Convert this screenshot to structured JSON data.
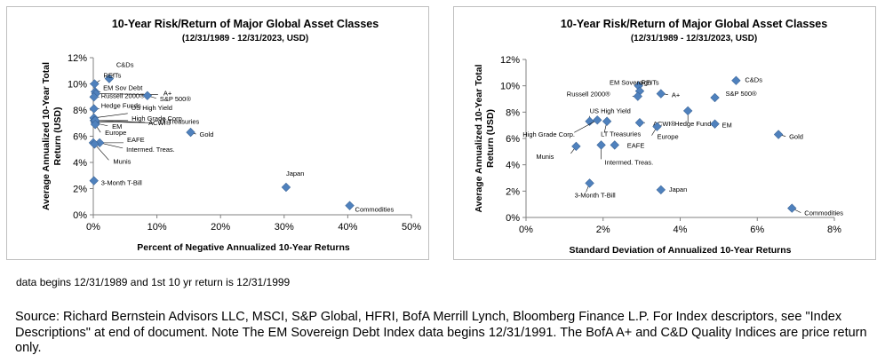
{
  "chart_data": [
    {
      "type": "scatter",
      "title": "10-Year Risk/Return of Major Global Asset Classes",
      "subtitle": "(12/31/1989 - 12/31/2023, USD)",
      "xlabel": "Percent of Negative Annualized 10-Year Returns",
      "ylabel": "Average Annualized 10-Year Total Return (USD)",
      "xlim": [
        0,
        50
      ],
      "ylim": [
        0,
        12
      ],
      "x_ticks": [
        "0%",
        "10%",
        "20%",
        "30%",
        "40%",
        "50%"
      ],
      "y_ticks": [
        "0%",
        "2%",
        "4%",
        "6%",
        "8%",
        "10%",
        "12%"
      ],
      "grid": false,
      "points": [
        {
          "label": "C&Ds",
          "x": 2.5,
          "y": 10.4
        },
        {
          "label": "REITs",
          "x": 0.2,
          "y": 10.0
        },
        {
          "label": "EM Sov Debt",
          "x": 0.3,
          "y": 9.4
        },
        {
          "label": "A+",
          "x": 0.4,
          "y": 9.25
        },
        {
          "label": "Russell 2000®",
          "x": 0.1,
          "y": 9.0
        },
        {
          "label": "S&P 500®",
          "x": 8.5,
          "y": 9.1
        },
        {
          "label": "Hedge Funds",
          "x": 0.1,
          "y": 8.1
        },
        {
          "label": "US High Yield",
          "x": 0.1,
          "y": 7.4
        },
        {
          "label": "High Grade Corp.",
          "x": 0.15,
          "y": 7.2
        },
        {
          "label": "LT Treasuries",
          "x": 0.3,
          "y": 7.1
        },
        {
          "label": "EM",
          "x": 0.3,
          "y": 7.0
        },
        {
          "label": "ACWI®",
          "x": 0.3,
          "y": 7.2
        },
        {
          "label": "Europe",
          "x": 0.3,
          "y": 6.9
        },
        {
          "label": "Gold",
          "x": 15.3,
          "y": 6.3
        },
        {
          "label": "EAFE",
          "x": 0.0,
          "y": 5.5
        },
        {
          "label": "Intermed. Treas.",
          "x": 1.0,
          "y": 5.5
        },
        {
          "label": "Munis",
          "x": 0.2,
          "y": 5.4
        },
        {
          "label": "3-Month T-Bill",
          "x": 0.1,
          "y": 2.6
        },
        {
          "label": "Japan",
          "x": 30.3,
          "y": 2.1
        },
        {
          "label": "Commodities",
          "x": 40.3,
          "y": 0.7
        }
      ]
    },
    {
      "type": "scatter",
      "title": "10-Year Risk/Return of Major Global Asset Classes",
      "subtitle": "(12/31/1989 - 12/31/2023, USD)",
      "xlabel": "Standard Deviation of Annualized 10-Year Returns",
      "ylabel": "Average Annualized 10-Year Total Return (USD)",
      "xlim": [
        0,
        8
      ],
      "ylim": [
        0,
        12
      ],
      "x_ticks": [
        "0%",
        "2%",
        "4%",
        "6%",
        "8%"
      ],
      "y_ticks": [
        "0%",
        "2%",
        "4%",
        "6%",
        "8%",
        "10%",
        "12%"
      ],
      "grid": false,
      "points": [
        {
          "label": "C&Ds",
          "x": 5.45,
          "y": 10.4
        },
        {
          "label": "REITs",
          "x": 2.92,
          "y": 10.0
        },
        {
          "label": "EM Sovereign",
          "x": 2.95,
          "y": 9.6
        },
        {
          "label": "A+",
          "x": 3.5,
          "y": 9.4
        },
        {
          "label": "Russell 2000®",
          "x": 2.9,
          "y": 9.2
        },
        {
          "label": "S&P 500®",
          "x": 4.9,
          "y": 9.1
        },
        {
          "label": "US High Yield",
          "x": 1.65,
          "y": 7.3
        },
        {
          "label": "High Grade Corp.",
          "x": 1.85,
          "y": 7.4
        },
        {
          "label": "LT Treasuries",
          "x": 2.1,
          "y": 7.3
        },
        {
          "label": "ACWI®",
          "x": 2.95,
          "y": 7.2
        },
        {
          "label": "Europe",
          "x": 3.4,
          "y": 6.9
        },
        {
          "label": "Hedge Funds",
          "x": 4.2,
          "y": 8.1
        },
        {
          "label": "EM",
          "x": 4.9,
          "y": 7.1
        },
        {
          "label": "Gold",
          "x": 6.55,
          "y": 6.3
        },
        {
          "label": "Munis",
          "x": 1.3,
          "y": 5.4
        },
        {
          "label": "Intermed. Treas.",
          "x": 1.95,
          "y": 5.5
        },
        {
          "label": "EAFE",
          "x": 2.3,
          "y": 5.5
        },
        {
          "label": "3-Month T-Bill",
          "x": 1.65,
          "y": 2.6
        },
        {
          "label": "Japan",
          "x": 3.5,
          "y": 2.1
        },
        {
          "label": "Commodities",
          "x": 6.9,
          "y": 0.7
        }
      ]
    }
  ],
  "notes": {
    "footnote": "data begins 12/31/1989 and 1st 10 yr return is 12/31/1999",
    "source": "Source: Richard Bernstein Advisors LLC, MSCI, S&P Global, HFRI, BofA Merrill Lynch, Bloomberg Finance L.P. For Index descriptors, see \"Index Descriptions\" at end of document. Note The EM Sovereign Debt Index data begins 12/31/1991. The BofA A+ and C&D Quality Indices are price return only."
  },
  "colors": {
    "marker": "#4f81bd",
    "marker_stroke": "#365f91",
    "axis": "#808080",
    "panel_border": "#bfbfbf"
  }
}
